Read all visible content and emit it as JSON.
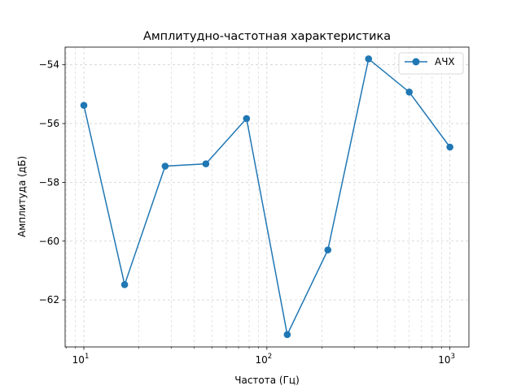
{
  "chart_data": {
    "type": "line",
    "title": "Амплитудно-частотная характеристика",
    "xlabel": "Частота (Гц)",
    "ylabel": "Амплитуда (дБ)",
    "xscale": "log",
    "xlim": [
      7.9,
      1270
    ],
    "ylim": [
      -63.6,
      -53.4
    ],
    "grid": true,
    "legend_position": "top-right",
    "x_ticks": [
      {
        "value": 10,
        "base": "10",
        "exp": "1"
      },
      {
        "value": 100,
        "base": "10",
        "exp": "2"
      },
      {
        "value": 1000,
        "base": "10",
        "exp": "3"
      }
    ],
    "y_ticks": [
      {
        "value": -54,
        "label": "−54"
      },
      {
        "value": -56,
        "label": "−56"
      },
      {
        "value": -58,
        "label": "−58"
      },
      {
        "value": -60,
        "label": "−60"
      },
      {
        "value": -62,
        "label": "−62"
      }
    ],
    "series": [
      {
        "name": "АЧХ",
        "color": "#1f77b4",
        "x": [
          10,
          16.7,
          27.8,
          46.4,
          77.4,
          129.2,
          215.4,
          359.4,
          599.5,
          1000
        ],
        "y": [
          -55.38,
          -61.48,
          -57.45,
          -57.37,
          -55.83,
          -63.18,
          -60.3,
          -53.8,
          -54.93,
          -56.8
        ]
      }
    ]
  }
}
